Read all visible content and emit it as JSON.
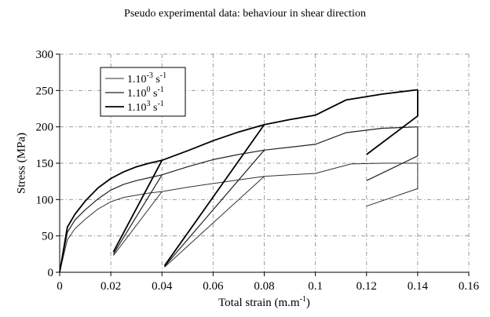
{
  "chart_data": {
    "type": "line",
    "title": "Pseudo experimental data: behaviour in shear direction",
    "xlabel": "Total strain (m.m-1)",
    "xlabel_parts": {
      "base": "Total strain (m.m",
      "sup": "-1",
      "end": ")"
    },
    "ylabel": "Stress (MPa)",
    "xlim": [
      0,
      0.16
    ],
    "ylim": [
      0,
      300
    ],
    "xticks": [
      0,
      0.02,
      0.04,
      0.06,
      0.08,
      0.1,
      0.12,
      0.14,
      0.16
    ],
    "xtick_labels": [
      "0",
      "0.02",
      "0.04",
      "0.06",
      "0.08",
      "0.1",
      "0.12",
      "0.14",
      "0.16"
    ],
    "yticks": [
      0,
      50,
      100,
      150,
      200,
      250,
      300
    ],
    "ytick_labels": [
      "0",
      "50",
      "100",
      "150",
      "200",
      "250",
      "300"
    ],
    "grid": true,
    "legend_position": "top-left",
    "series": [
      {
        "name": "1.10-3 s-1",
        "legend": {
          "base": "1.10",
          "exp": "-3",
          "unit": " s",
          "unit_exp": "-1"
        },
        "color": "#333333",
        "width": 1,
        "segments": [
          [
            [
              0,
              0
            ],
            [
              0.003,
              45
            ],
            [
              0.006,
              60
            ],
            [
              0.01,
              73
            ],
            [
              0.015,
              87
            ],
            [
              0.02,
              97
            ],
            [
              0.025,
              103
            ],
            [
              0.03,
              106
            ],
            [
              0.035,
              109
            ],
            [
              0.04,
              111
            ],
            [
              0.05,
              117
            ],
            [
              0.06,
              122
            ],
            [
              0.07,
              127
            ],
            [
              0.08,
              132
            ],
            [
              0.09,
              134
            ],
            [
              0.1,
              136
            ],
            [
              0.114,
              149
            ],
            [
              0.127,
              150
            ],
            [
              0.14,
              150
            ]
          ],
          [
            [
              0.021,
              23
            ],
            [
              0.04,
              111
            ]
          ],
          [
            [
              0.041,
              7
            ],
            [
              0.08,
              132
            ]
          ],
          [
            [
              0.12,
              91
            ],
            [
              0.14,
              115
            ],
            [
              0.14,
              135
            ],
            [
              0.14,
              150
            ]
          ]
        ]
      },
      {
        "name": "1.100 s-1",
        "legend": {
          "base": "1.10",
          "exp": "0",
          "unit": " s",
          "unit_exp": "-1"
        },
        "color": "#222222",
        "width": 1.2,
        "segments": [
          [
            [
              0,
              0
            ],
            [
              0.003,
              55
            ],
            [
              0.006,
              72
            ],
            [
              0.01,
              86
            ],
            [
              0.015,
              101
            ],
            [
              0.02,
              113
            ],
            [
              0.025,
              121
            ],
            [
              0.03,
              126
            ],
            [
              0.035,
              130
            ],
            [
              0.04,
              134
            ],
            [
              0.05,
              145
            ],
            [
              0.06,
              155
            ],
            [
              0.07,
              162
            ],
            [
              0.08,
              168
            ],
            [
              0.09,
              172
            ],
            [
              0.1,
              176
            ],
            [
              0.112,
              192
            ],
            [
              0.126,
              198
            ],
            [
              0.14,
              200
            ]
          ],
          [
            [
              0.021,
              25
            ],
            [
              0.04,
              134
            ]
          ],
          [
            [
              0.041,
              8
            ],
            [
              0.08,
              168
            ]
          ],
          [
            [
              0.12,
              126
            ],
            [
              0.14,
              160
            ],
            [
              0.14,
              185
            ],
            [
              0.14,
              200
            ]
          ]
        ]
      },
      {
        "name": "1.103 s-1",
        "legend": {
          "base": "1.10",
          "exp": "3",
          "unit": " s",
          "unit_exp": "-1"
        },
        "color": "#000000",
        "width": 1.8,
        "segments": [
          [
            [
              0,
              0
            ],
            [
              0.003,
              62
            ],
            [
              0.006,
              80
            ],
            [
              0.01,
              98
            ],
            [
              0.015,
              116
            ],
            [
              0.02,
              129
            ],
            [
              0.025,
              138
            ],
            [
              0.03,
              145
            ],
            [
              0.035,
              150
            ],
            [
              0.04,
              154
            ],
            [
              0.05,
              167
            ],
            [
              0.06,
              181
            ],
            [
              0.07,
              193
            ],
            [
              0.08,
              203
            ],
            [
              0.09,
              210
            ],
            [
              0.1,
              216
            ],
            [
              0.112,
              237
            ],
            [
              0.126,
              245
            ],
            [
              0.14,
              251
            ]
          ],
          [
            [
              0.021,
              28
            ],
            [
              0.04,
              154
            ]
          ],
          [
            [
              0.041,
              9
            ],
            [
              0.08,
              203
            ]
          ],
          [
            [
              0.12,
              162
            ],
            [
              0.14,
              215
            ],
            [
              0.14,
              237
            ],
            [
              0.14,
              251
            ]
          ]
        ]
      }
    ]
  }
}
